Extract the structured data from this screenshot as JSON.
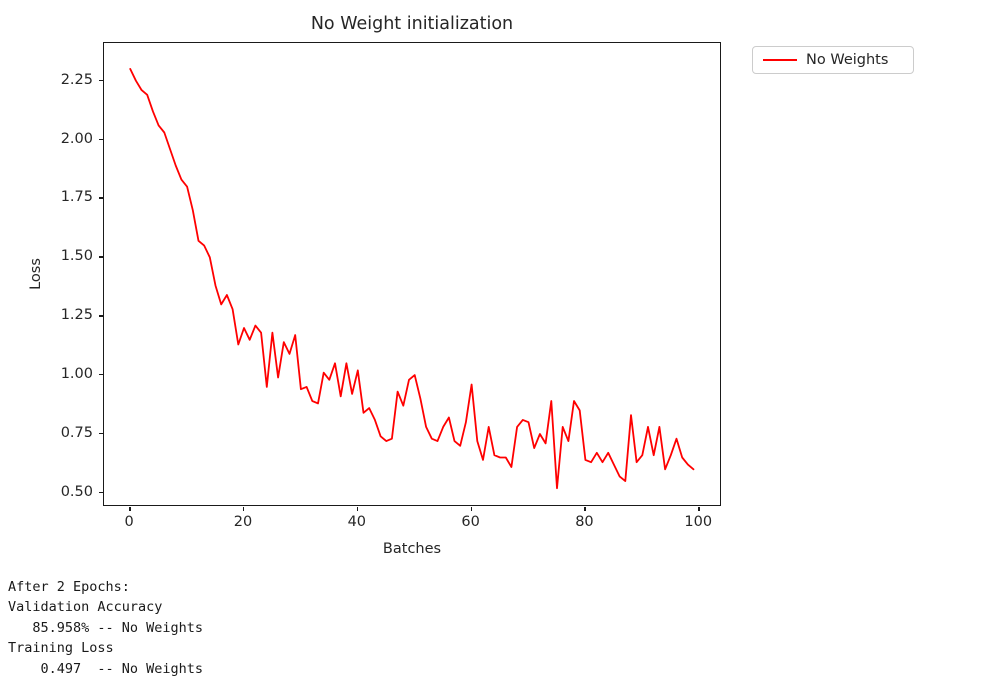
{
  "chart_data": {
    "type": "line",
    "title": "No Weight initialization",
    "xlabel": "Batches",
    "ylabel": "Loss",
    "grid": false,
    "legend_position": "outside upper right",
    "xlim": [
      -4.6,
      104.0
    ],
    "ylim": [
      0.44,
      2.41
    ],
    "xticks": [
      0,
      20,
      40,
      60,
      80,
      100
    ],
    "yticks": [
      0.5,
      0.75,
      1.0,
      1.25,
      1.5,
      1.75,
      2.0,
      2.25
    ],
    "x": [
      0,
      1,
      2,
      3,
      4,
      5,
      6,
      7,
      8,
      9,
      10,
      11,
      12,
      13,
      14,
      15,
      16,
      17,
      18,
      19,
      20,
      21,
      22,
      23,
      24,
      25,
      26,
      27,
      28,
      29,
      30,
      31,
      32,
      33,
      34,
      35,
      36,
      37,
      38,
      39,
      40,
      41,
      42,
      43,
      44,
      45,
      46,
      47,
      48,
      49,
      50,
      51,
      52,
      53,
      54,
      55,
      56,
      57,
      58,
      59,
      60,
      61,
      62,
      63,
      64,
      65,
      66,
      67,
      68,
      69,
      70,
      71,
      72,
      73,
      74,
      75,
      76,
      77,
      78,
      79,
      80,
      81,
      82,
      83,
      84,
      85,
      86,
      87,
      88,
      89,
      90,
      91,
      92,
      93,
      94,
      95,
      96,
      97,
      98,
      99
    ],
    "series": [
      {
        "name": "No Weights",
        "color": "#ff0000",
        "values": [
          2.3,
          2.25,
          2.21,
          2.19,
          2.12,
          2.06,
          2.03,
          1.96,
          1.89,
          1.83,
          1.8,
          1.7,
          1.57,
          1.55,
          1.5,
          1.38,
          1.3,
          1.34,
          1.28,
          1.13,
          1.2,
          1.15,
          1.21,
          1.18,
          0.95,
          1.18,
          0.99,
          1.14,
          1.09,
          1.17,
          0.94,
          0.95,
          0.89,
          0.88,
          1.01,
          0.98,
          1.05,
          0.91,
          1.05,
          0.92,
          1.02,
          0.84,
          0.86,
          0.81,
          0.74,
          0.72,
          0.73,
          0.93,
          0.87,
          0.98,
          1.0,
          0.9,
          0.78,
          0.73,
          0.72,
          0.78,
          0.82,
          0.72,
          0.7,
          0.8,
          0.96,
          0.72,
          0.64,
          0.78,
          0.66,
          0.65,
          0.65,
          0.61,
          0.78,
          0.81,
          0.8,
          0.69,
          0.75,
          0.71,
          0.89,
          0.52,
          0.78,
          0.72,
          0.89,
          0.85,
          0.64,
          0.63,
          0.67,
          0.63,
          0.67,
          0.62,
          0.57,
          0.55,
          0.83,
          0.63,
          0.66,
          0.78,
          0.66,
          0.78,
          0.6,
          0.66,
          0.73,
          0.65,
          0.62,
          0.6
        ]
      }
    ]
  },
  "console": {
    "lines": [
      "After 2 Epochs:",
      "Validation Accuracy",
      "   85.958% -- No Weights",
      "Training Loss",
      "    0.497  -- No Weights"
    ]
  }
}
